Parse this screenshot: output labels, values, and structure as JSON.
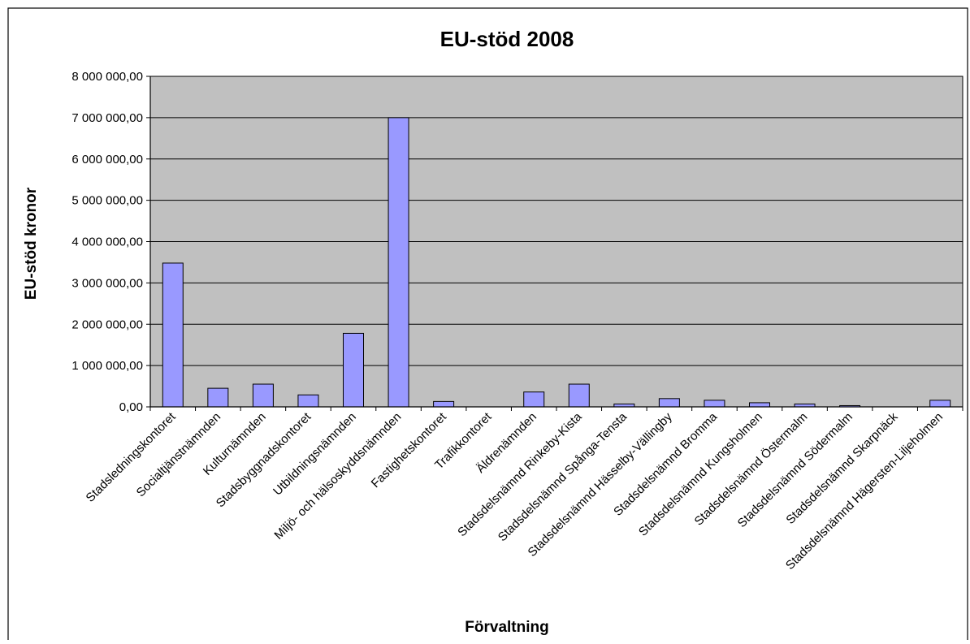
{
  "chart_data": {
    "type": "bar",
    "title": "EU-stöd 2008",
    "xlabel": "Förvaltning",
    "ylabel": "EU-stöd kronor",
    "categories": [
      "Stadsledningskontoret",
      "Socialtjänstnämnden",
      "Kulturnämnden",
      "Stadsbyggnadskontoret",
      "Utbildningsnämnden",
      "Miljö- och hälsoskyddsnämnden",
      "Fastighetskontoret",
      "Trafikkontoret",
      "Äldrenämnden",
      "Stadsdelsnämnd Rinkeby-Kista",
      "Stadsdelsnämnd Spånga-Tensta",
      "Stadsdelsnämnd Hässelby-Vällingby",
      "Stadsdelsnämnd Bromma",
      "Stadsdelsnämnd Kungsholmen",
      "Stadsdelsnämnd Östermalm",
      "Stadsdelsnämnd Södermalm",
      "Stadsdelsnämnd Skarpnäck",
      "Stadsdelsnämnd Hägersten-Liljeholmen"
    ],
    "values": [
      3480000,
      450000,
      550000,
      290000,
      1780000,
      7000000,
      130000,
      0,
      360000,
      550000,
      70000,
      200000,
      160000,
      100000,
      70000,
      30000,
      0,
      160000
    ],
    "ylim": [
      0,
      8000000
    ],
    "yticks": [
      "0,00",
      "1 000 000,00",
      "2 000 000,00",
      "3 000 000,00",
      "4 000 000,00",
      "5 000 000,00",
      "6 000 000,00",
      "7 000 000,00",
      "8 000 000,00"
    ],
    "grid": true,
    "legend": "none",
    "colors": {
      "bar_fill": "#9999ff",
      "bar_stroke": "#000000",
      "plot_background": "#c0c0c0",
      "gridline": "#000000"
    }
  }
}
